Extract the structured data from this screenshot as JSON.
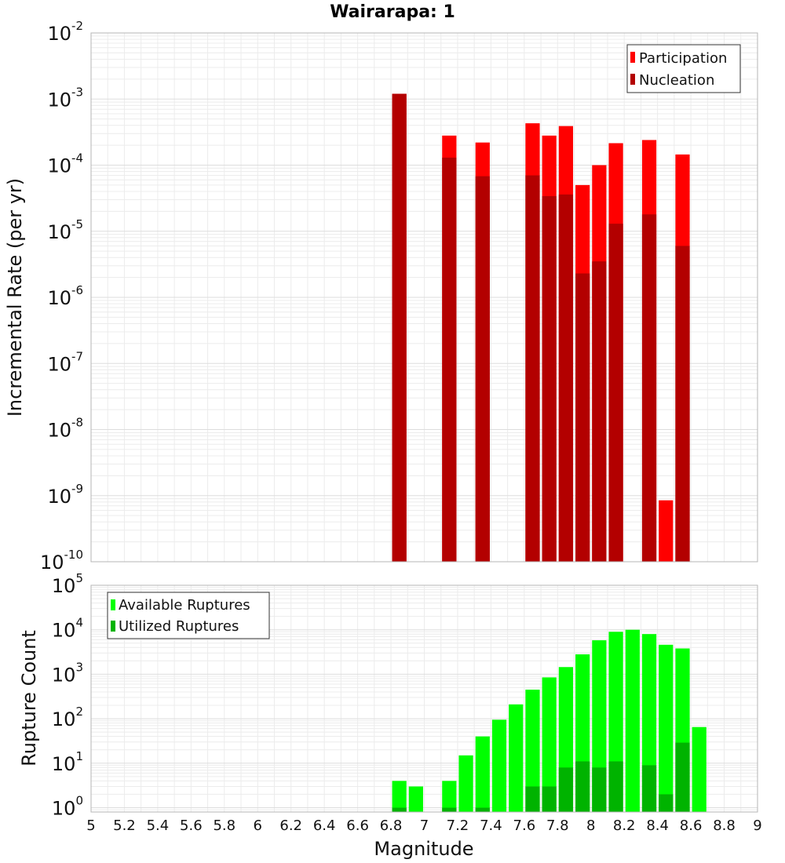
{
  "title": "Wairarapa: 1",
  "xlabel": "Magnitude",
  "x_tick_labels": [
    "5",
    "5.2",
    "5.4",
    "5.6",
    "5.8",
    "6",
    "6.2",
    "6.4",
    "6.6",
    "6.8",
    "7",
    "7.2",
    "7.4",
    "7.6",
    "7.8",
    "8",
    "8.2",
    "8.4",
    "8.6",
    "8.8",
    "9"
  ],
  "colors": {
    "participation": "#ff0000",
    "nucleation": "#b30000",
    "available": "#00ff00",
    "utilized": "#00b300"
  },
  "chart_data": [
    {
      "type": "bar",
      "title": "Wairarapa: 1",
      "xlabel": "",
      "ylabel": "Incremental Rate (per yr)",
      "xlim": [
        5,
        9
      ],
      "ylim": [
        1e-10,
        0.01
      ],
      "yscale": "log",
      "bin_width": 0.1,
      "grid": true,
      "legend_position": "top-right",
      "y_tick_exponents": [
        -10,
        -9,
        -8,
        -7,
        -6,
        -5,
        -4,
        -3,
        -2
      ],
      "x": [
        6.85,
        7.15,
        7.35,
        7.65,
        7.75,
        7.85,
        7.95,
        8.05,
        8.15,
        8.35,
        8.45,
        8.55
      ],
      "series": [
        {
          "name": "Participation",
          "values": [
            0.0012,
            0.00028,
            0.00022,
            0.00043,
            0.00028,
            0.00039,
            5e-05,
            0.0001,
            0.000215,
            0.00024,
            8.5e-10,
            0.000145
          ]
        },
        {
          "name": "Nucleation",
          "values": [
            0.0012,
            0.00013,
            6.8e-05,
            7e-05,
            3.4e-05,
            3.6e-05,
            2.3e-06,
            3.5e-06,
            1.3e-05,
            1.8e-05,
            null,
            6e-06
          ]
        }
      ]
    },
    {
      "type": "bar",
      "title": "",
      "xlabel": "Magnitude",
      "ylabel": "Rupture Count",
      "xlim": [
        5,
        9
      ],
      "ylim": [
        0.8,
        100000.0
      ],
      "yscale": "log",
      "bin_width": 0.1,
      "grid": true,
      "legend_position": "top-left",
      "y_tick_exponents": [
        0,
        1,
        2,
        3,
        4,
        5
      ],
      "x": [
        6.85,
        6.95,
        7.15,
        7.25,
        7.35,
        7.45,
        7.55,
        7.65,
        7.75,
        7.85,
        7.95,
        8.05,
        8.15,
        8.25,
        8.35,
        8.45,
        8.55,
        8.65
      ],
      "series": [
        {
          "name": "Available Ruptures",
          "values": [
            4,
            3,
            4,
            15,
            40,
            95,
            210,
            450,
            850,
            1450,
            2800,
            5800,
            9000,
            10000,
            8000,
            4600,
            3800,
            65
          ]
        },
        {
          "name": "Utilized Ruptures",
          "values": [
            1,
            null,
            1,
            null,
            1,
            null,
            null,
            3,
            3,
            8,
            11,
            8,
            11,
            null,
            9,
            2,
            29,
            null
          ]
        }
      ]
    }
  ]
}
